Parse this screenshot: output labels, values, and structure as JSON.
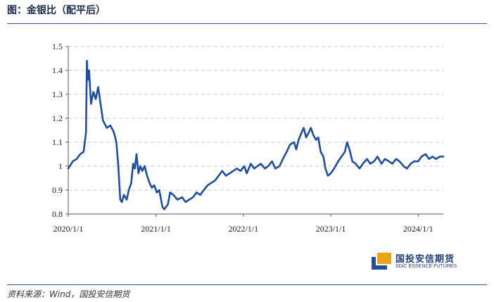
{
  "header": {
    "title": "图：金银比（配平后）"
  },
  "footer": {
    "source": "资料来源：Wind，国投安信期货"
  },
  "logo": {
    "cn": "国投安信期货",
    "en": "SDIC ESSENCE FUTURES",
    "colors": {
      "blue": "#1f4e9c",
      "gold": "#e8a319"
    }
  },
  "chart_data": {
    "type": "line",
    "title": "",
    "xlabel": "",
    "ylabel": "",
    "ylim": [
      0.8,
      1.5
    ],
    "yticks": [
      "0.8",
      "0.9",
      "1",
      "1.1",
      "1.2",
      "1.3",
      "1.4",
      "1.5"
    ],
    "xticks": [
      "2020/1/1",
      "2021/1/1",
      "2022/1/1",
      "2023/1/1",
      "2024/1/1"
    ],
    "xlim": [
      "2020-01-01",
      "2024-04-15"
    ],
    "grid": "horizontal-dashed",
    "line_color": "#1f4e9c",
    "series": [
      {
        "name": "",
        "points": [
          [
            "2020-01-01",
            0.99
          ],
          [
            "2020-01-20",
            1.02
          ],
          [
            "2020-02-05",
            1.03
          ],
          [
            "2020-02-20",
            1.05
          ],
          [
            "2020-03-05",
            1.06
          ],
          [
            "2020-03-15",
            1.14
          ],
          [
            "2020-03-19",
            1.44
          ],
          [
            "2020-03-22",
            1.36
          ],
          [
            "2020-03-28",
            1.4
          ],
          [
            "2020-04-05",
            1.26
          ],
          [
            "2020-04-15",
            1.31
          ],
          [
            "2020-04-25",
            1.28
          ],
          [
            "2020-05-05",
            1.33
          ],
          [
            "2020-05-15",
            1.26
          ],
          [
            "2020-05-25",
            1.19
          ],
          [
            "2020-06-10",
            1.16
          ],
          [
            "2020-06-25",
            1.17
          ],
          [
            "2020-07-10",
            1.14
          ],
          [
            "2020-07-20",
            1.1
          ],
          [
            "2020-07-28",
            1.0
          ],
          [
            "2020-08-05",
            0.86
          ],
          [
            "2020-08-12",
            0.85
          ],
          [
            "2020-08-20",
            0.88
          ],
          [
            "2020-09-01",
            0.86
          ],
          [
            "2020-09-10",
            0.9
          ],
          [
            "2020-09-20",
            0.93
          ],
          [
            "2020-09-28",
            1.01
          ],
          [
            "2020-10-05",
            0.99
          ],
          [
            "2020-10-12",
            1.05
          ],
          [
            "2020-10-20",
            0.97
          ],
          [
            "2020-10-28",
            1.0
          ],
          [
            "2020-11-05",
            0.98
          ],
          [
            "2020-11-15",
            1.0
          ],
          [
            "2020-11-25",
            0.96
          ],
          [
            "2020-12-05",
            0.93
          ],
          [
            "2020-12-15",
            0.91
          ],
          [
            "2020-12-25",
            0.92
          ],
          [
            "2021-01-05",
            0.89
          ],
          [
            "2021-01-15",
            0.9
          ],
          [
            "2021-01-28",
            0.83
          ],
          [
            "2021-02-05",
            0.82
          ],
          [
            "2021-02-20",
            0.84
          ],
          [
            "2021-03-01",
            0.89
          ],
          [
            "2021-03-15",
            0.88
          ],
          [
            "2021-04-01",
            0.86
          ],
          [
            "2021-04-20",
            0.87
          ],
          [
            "2021-05-05",
            0.85
          ],
          [
            "2021-05-20",
            0.86
          ],
          [
            "2021-06-05",
            0.87
          ],
          [
            "2021-06-20",
            0.89
          ],
          [
            "2021-07-05",
            0.88
          ],
          [
            "2021-07-20",
            0.9
          ],
          [
            "2021-08-05",
            0.92
          ],
          [
            "2021-08-20",
            0.93
          ],
          [
            "2021-09-05",
            0.94
          ],
          [
            "2021-09-20",
            0.96
          ],
          [
            "2021-10-05",
            0.98
          ],
          [
            "2021-10-20",
            0.96
          ],
          [
            "2021-11-05",
            0.97
          ],
          [
            "2021-11-20",
            0.98
          ],
          [
            "2021-12-05",
            0.99
          ],
          [
            "2021-12-20",
            0.98
          ],
          [
            "2022-01-05",
            1.0
          ],
          [
            "2022-01-15",
            0.97
          ],
          [
            "2022-02-01",
            1.01
          ],
          [
            "2022-02-15",
            0.99
          ],
          [
            "2022-03-01",
            1.0
          ],
          [
            "2022-03-15",
            1.01
          ],
          [
            "2022-04-01",
            0.99
          ],
          [
            "2022-04-15",
            1.0
          ],
          [
            "2022-05-01",
            1.02
          ],
          [
            "2022-05-15",
            0.99
          ],
          [
            "2022-06-01",
            1.0
          ],
          [
            "2022-06-15",
            1.03
          ],
          [
            "2022-07-01",
            1.06
          ],
          [
            "2022-07-15",
            1.09
          ],
          [
            "2022-08-01",
            1.1
          ],
          [
            "2022-08-10",
            1.07
          ],
          [
            "2022-08-20",
            1.11
          ],
          [
            "2022-09-01",
            1.14
          ],
          [
            "2022-09-10",
            1.16
          ],
          [
            "2022-09-20",
            1.12
          ],
          [
            "2022-10-01",
            1.14
          ],
          [
            "2022-10-10",
            1.16
          ],
          [
            "2022-10-20",
            1.13
          ],
          [
            "2022-11-01",
            1.11
          ],
          [
            "2022-11-10",
            1.12
          ],
          [
            "2022-11-20",
            1.06
          ],
          [
            "2022-12-01",
            1.04
          ],
          [
            "2022-12-10",
            0.99
          ],
          [
            "2022-12-20",
            0.96
          ],
          [
            "2023-01-01",
            0.97
          ],
          [
            "2023-01-15",
            0.99
          ],
          [
            "2023-02-01",
            1.02
          ],
          [
            "2023-02-15",
            1.04
          ],
          [
            "2023-03-01",
            1.06
          ],
          [
            "2023-03-10",
            1.1
          ],
          [
            "2023-03-20",
            1.07
          ],
          [
            "2023-04-01",
            1.02
          ],
          [
            "2023-04-15",
            1.01
          ],
          [
            "2023-05-01",
            0.99
          ],
          [
            "2023-05-15",
            1.01
          ],
          [
            "2023-06-01",
            1.03
          ],
          [
            "2023-06-15",
            1.01
          ],
          [
            "2023-07-01",
            1.02
          ],
          [
            "2023-07-15",
            1.04
          ],
          [
            "2023-08-01",
            1.01
          ],
          [
            "2023-08-15",
            1.03
          ],
          [
            "2023-09-01",
            1.02
          ],
          [
            "2023-09-15",
            1.01
          ],
          [
            "2023-10-01",
            1.03
          ],
          [
            "2023-10-15",
            1.02
          ],
          [
            "2023-11-01",
            1.0
          ],
          [
            "2023-11-15",
            0.99
          ],
          [
            "2023-12-01",
            1.01
          ],
          [
            "2023-12-15",
            1.02
          ],
          [
            "2024-01-01",
            1.02
          ],
          [
            "2024-01-15",
            1.04
          ],
          [
            "2024-02-01",
            1.05
          ],
          [
            "2024-02-15",
            1.03
          ],
          [
            "2024-03-01",
            1.04
          ],
          [
            "2024-03-15",
            1.03
          ],
          [
            "2024-04-01",
            1.04
          ],
          [
            "2024-04-15",
            1.04
          ]
        ]
      }
    ]
  }
}
